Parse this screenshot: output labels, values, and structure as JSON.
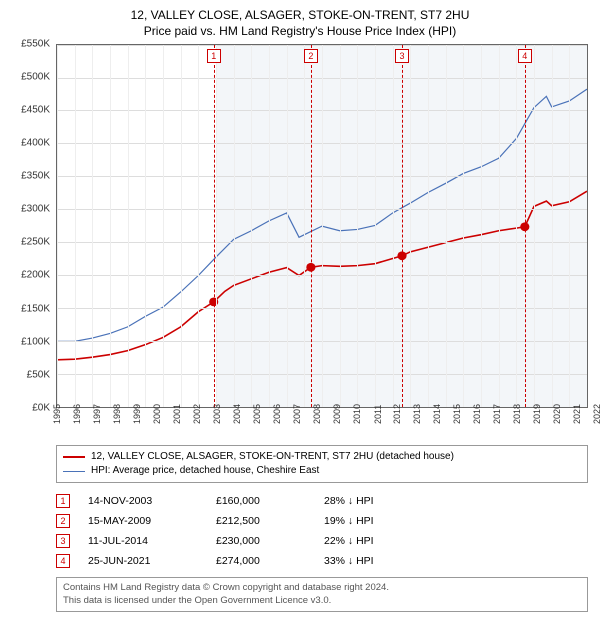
{
  "title": "12, VALLEY CLOSE, ALSAGER, STOKE-ON-TRENT, ST7 2HU",
  "subtitle": "Price paid vs. HM Land Registry's House Price Index (HPI)",
  "chart": {
    "type": "line",
    "y": {
      "min": 0,
      "max": 550,
      "step": 50,
      "prefix": "£",
      "suffix": "K"
    },
    "x": {
      "min": 1995,
      "max": 2025,
      "step": 1
    },
    "grid_color": "#dddddd",
    "shaded_bands": [
      [
        2004,
        2009
      ],
      [
        2009,
        2014
      ],
      [
        2014,
        2021
      ],
      [
        2021,
        2025.5
      ]
    ],
    "band_color": "#e8edf4",
    "markers": [
      {
        "n": "1",
        "year": 2003.87,
        "date": "14-NOV-2003",
        "price": "£160,000",
        "diff": "28% ↓ HPI",
        "value": 160
      },
      {
        "n": "2",
        "year": 2009.37,
        "date": "15-MAY-2009",
        "price": "£212,500",
        "diff": "19% ↓ HPI",
        "value": 212.5
      },
      {
        "n": "3",
        "year": 2014.53,
        "date": "11-JUL-2014",
        "price": "£230,000",
        "diff": "22% ↓ HPI",
        "value": 230
      },
      {
        "n": "4",
        "year": 2021.48,
        "date": "25-JUN-2021",
        "price": "£274,000",
        "diff": "33% ↓ HPI",
        "value": 274
      }
    ],
    "series": [
      {
        "name": "12, VALLEY CLOSE, ALSAGER, STOKE-ON-TRENT, ST7 2HU (detached house)",
        "color": "#cc0000",
        "width": 1.6,
        "points": [
          [
            1995,
            72
          ],
          [
            1996,
            73
          ],
          [
            1997,
            76
          ],
          [
            1998,
            80
          ],
          [
            1999,
            86
          ],
          [
            2000,
            95
          ],
          [
            2001,
            106
          ],
          [
            2002,
            122
          ],
          [
            2003,
            145
          ],
          [
            2003.87,
            160
          ],
          [
            2004.5,
            176
          ],
          [
            2005,
            185
          ],
          [
            2006,
            195
          ],
          [
            2007,
            205
          ],
          [
            2008,
            212
          ],
          [
            2008.7,
            200
          ],
          [
            2009.37,
            212.5
          ],
          [
            2010,
            215
          ],
          [
            2011,
            214
          ],
          [
            2012,
            215
          ],
          [
            2013,
            218
          ],
          [
            2014.53,
            230
          ],
          [
            2015,
            236
          ],
          [
            2016,
            243
          ],
          [
            2017,
            250
          ],
          [
            2018,
            257
          ],
          [
            2019,
            262
          ],
          [
            2020,
            268
          ],
          [
            2021,
            272
          ],
          [
            2021.48,
            274
          ],
          [
            2022,
            305
          ],
          [
            2022.7,
            313
          ],
          [
            2023,
            306
          ],
          [
            2024,
            312
          ],
          [
            2025,
            328
          ]
        ]
      },
      {
        "name": "HPI: Average price, detached house, Cheshire East",
        "color": "#4a72b8",
        "width": 1.2,
        "points": [
          [
            1995,
            100
          ],
          [
            1996,
            100
          ],
          [
            1997,
            105
          ],
          [
            1998,
            112
          ],
          [
            1999,
            122
          ],
          [
            2000,
            138
          ],
          [
            2001,
            152
          ],
          [
            2002,
            175
          ],
          [
            2003,
            200
          ],
          [
            2004,
            228
          ],
          [
            2005,
            255
          ],
          [
            2006,
            268
          ],
          [
            2007,
            283
          ],
          [
            2008,
            295
          ],
          [
            2008.7,
            258
          ],
          [
            2009,
            262
          ],
          [
            2010,
            275
          ],
          [
            2011,
            268
          ],
          [
            2012,
            270
          ],
          [
            2013,
            276
          ],
          [
            2014,
            295
          ],
          [
            2015,
            310
          ],
          [
            2016,
            326
          ],
          [
            2017,
            340
          ],
          [
            2018,
            355
          ],
          [
            2019,
            365
          ],
          [
            2020,
            378
          ],
          [
            2021,
            408
          ],
          [
            2022,
            455
          ],
          [
            2022.7,
            472
          ],
          [
            2023,
            456
          ],
          [
            2024,
            465
          ],
          [
            2025,
            483
          ]
        ]
      }
    ]
  },
  "footer": {
    "line1": "Contains HM Land Registry data © Crown copyright and database right 2024.",
    "line2": "This data is licensed under the Open Government Licence v3.0."
  }
}
